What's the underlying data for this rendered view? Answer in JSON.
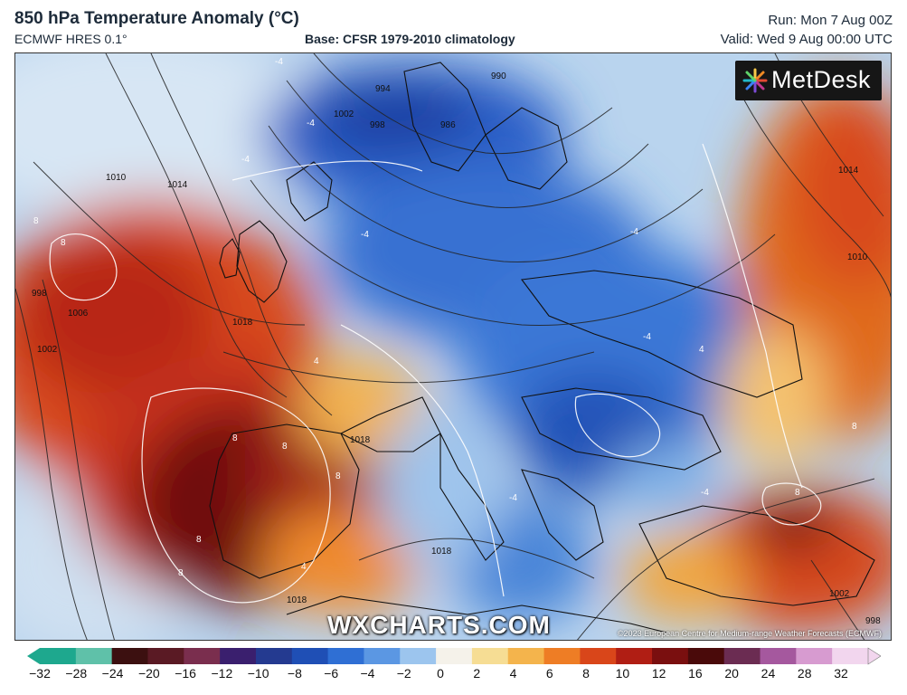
{
  "header": {
    "title": "850 hPa Temperature Anomaly (°C)",
    "model": "ECMWF HRES 0.1°",
    "base": "Base: CFSR 1979-2010 climatology",
    "run": "Run: Mon 7 Aug 00Z",
    "valid": "Valid: Wed 9 Aug 00:00 UTC"
  },
  "logo": {
    "text": "MetDesk"
  },
  "watermark": "WXCHARTS.COM",
  "copyright": "©2023 European Centre for Medium-range Weather Forecasts (ECMWF)",
  "colorbar": {
    "labels": [
      "−32",
      "−28",
      "−24",
      "−20",
      "−16",
      "−12",
      "−10",
      "−8",
      "−6",
      "−4",
      "−2",
      "0",
      "2",
      "4",
      "6",
      "8",
      "10",
      "12",
      "16",
      "20",
      "24",
      "28",
      "32"
    ],
    "colors": [
      "#1ea88e",
      "#5fc1a9",
      "#3c1010",
      "#5a1a24",
      "#7a2e4e",
      "#3a1f6e",
      "#243a90",
      "#1f4fb5",
      "#2f6fd4",
      "#5b97e3",
      "#9cc5ee",
      "#f5f2ea",
      "#f6dd94",
      "#f4b44c",
      "#ee7d25",
      "#d9461a",
      "#b01e14",
      "#7a0f0f",
      "#4a0a0a",
      "#6b2c52",
      "#a5589e",
      "#d79bd0",
      "#f2d6ee"
    ]
  },
  "map": {
    "isobar_labels": [
      "1010",
      "1014",
      "1018",
      "1018",
      "1018",
      "1018",
      "1006",
      "1002",
      "998",
      "1002",
      "998",
      "994",
      "990",
      "986",
      "1014",
      "1010",
      "1002",
      "998"
    ],
    "anomaly_labels": [
      "8",
      "8",
      "8",
      "8",
      "8",
      "8",
      "8",
      "8",
      "-4",
      "-4",
      "-4",
      "-4",
      "-4",
      "-4",
      "-4",
      "4",
      "4",
      "4",
      "-4",
      "8"
    ]
  }
}
